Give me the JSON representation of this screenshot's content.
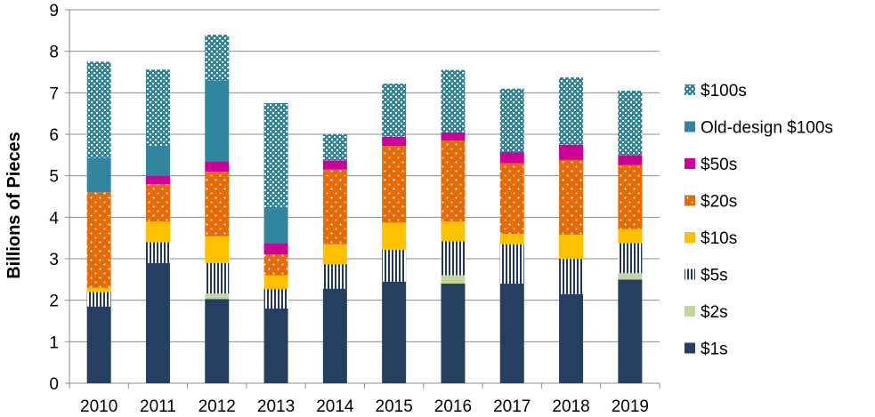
{
  "chart_data": {
    "type": "bar",
    "stacked": true,
    "ylabel": "Billions of Pieces",
    "ylim": [
      0,
      9
    ],
    "yticks": [
      0,
      1,
      2,
      3,
      4,
      5,
      6,
      7,
      8,
      9
    ],
    "grid": true,
    "legend_position": "right",
    "categories": [
      "2010",
      "2011",
      "2012",
      "2013",
      "2014",
      "2015",
      "2016",
      "2017",
      "2018",
      "2019"
    ],
    "series": [
      {
        "name": "$1s",
        "color": "#243f60",
        "pattern": "solid",
        "values": [
          1.85,
          2.9,
          2.03,
          1.8,
          2.28,
          2.45,
          2.4,
          2.4,
          2.15,
          2.5
        ]
      },
      {
        "name": "$2s",
        "color": "#c3d69b",
        "pattern": "solid",
        "values": [
          0.0,
          0.0,
          0.13,
          0.0,
          0.0,
          0.0,
          0.2,
          0.0,
          0.0,
          0.15
        ]
      },
      {
        "name": "$5s",
        "color": "#1f3864",
        "pattern": "vertical-stripes",
        "values": [
          0.35,
          0.5,
          0.74,
          0.47,
          0.59,
          0.77,
          0.82,
          0.95,
          0.85,
          0.73
        ]
      },
      {
        "name": "$10s",
        "color": "#ffc000",
        "pattern": "solid",
        "values": [
          0.1,
          0.5,
          0.64,
          0.33,
          0.48,
          0.65,
          0.48,
          0.25,
          0.58,
          0.33
        ]
      },
      {
        "name": "$20s",
        "color": "#e36c09",
        "pattern": "dots",
        "values": [
          2.3,
          0.9,
          1.56,
          0.5,
          1.8,
          1.85,
          1.95,
          1.7,
          1.8,
          1.55
        ]
      },
      {
        "name": "$50s",
        "color": "#cc0099",
        "pattern": "solid",
        "values": [
          0.0,
          0.2,
          0.25,
          0.28,
          0.22,
          0.22,
          0.2,
          0.27,
          0.37,
          0.24
        ]
      },
      {
        "name": "Old-design $100s",
        "color": "#31859c",
        "pattern": "solid",
        "values": [
          0.83,
          0.7,
          1.95,
          0.87,
          0.0,
          0.0,
          0.0,
          0.0,
          0.0,
          0.0
        ]
      },
      {
        "name": "$100s",
        "color": "#31859c",
        "pattern": "dots-dense",
        "values": [
          2.32,
          1.86,
          1.1,
          2.5,
          0.63,
          1.28,
          1.5,
          1.53,
          1.62,
          1.55
        ]
      }
    ]
  }
}
